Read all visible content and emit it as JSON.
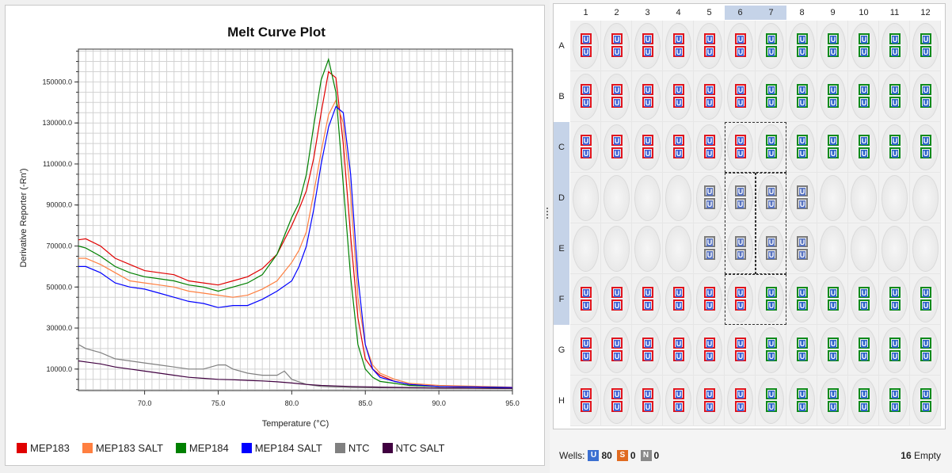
{
  "chart_data": {
    "type": "line",
    "title": "Melt Curve Plot",
    "xlabel": "Temperature (°C)",
    "ylabel": "Derivative Reporter (-Rn')",
    "xlim": [
      65.5,
      95.0
    ],
    "ylim": [
      -500,
      166000
    ],
    "xticks": [
      70.0,
      75.0,
      80.0,
      85.0,
      90.0,
      95.0
    ],
    "xtick_labels": [
      "70.0",
      "75.0",
      "80.0",
      "85.0",
      "90.0",
      "95.0"
    ],
    "yticks": [
      10000,
      30000,
      50000,
      70000,
      90000,
      110000,
      130000,
      150000
    ],
    "ytick_labels": [
      "10000.0",
      "30000.0",
      "50000.0",
      "70000.0",
      "90000.0",
      "110000.0",
      "130000.0",
      "150000.0"
    ],
    "grid": true,
    "legend_position": "bottom",
    "series": [
      {
        "name": "MEP183",
        "color": "#e00000",
        "x": [
          65.5,
          66,
          67,
          68,
          69,
          70,
          71,
          72,
          73,
          74,
          75,
          76,
          77,
          78,
          79,
          80,
          80.5,
          81,
          81.5,
          82,
          82.5,
          83,
          83.5,
          84,
          84.5,
          85,
          85.5,
          86,
          87,
          88,
          90,
          95
        ],
        "y": [
          73000,
          73500,
          70000,
          64000,
          61000,
          58000,
          57000,
          56000,
          53000,
          52000,
          51000,
          53000,
          55000,
          59000,
          66000,
          80000,
          88000,
          97000,
          113000,
          135000,
          155000,
          152000,
          120000,
          75000,
          35000,
          15000,
          10000,
          7000,
          4000,
          2500,
          1500,
          1000
        ]
      },
      {
        "name": "MEP183 SALT",
        "color": "#ff7f40",
        "x": [
          65.5,
          66,
          67,
          68,
          69,
          70,
          71,
          72,
          73,
          74,
          75,
          76,
          77,
          78,
          79,
          80,
          80.5,
          81,
          81.5,
          82,
          82.5,
          83,
          83.5,
          84,
          84.5,
          85,
          85.5,
          86,
          87,
          88,
          90,
          95
        ],
        "y": [
          64000,
          64000,
          61000,
          57000,
          53000,
          52000,
          51000,
          50000,
          48000,
          47000,
          46000,
          45000,
          46000,
          49000,
          53000,
          62000,
          68000,
          77000,
          96000,
          116000,
          134000,
          141000,
          130000,
          95000,
          45000,
          22000,
          12000,
          8000,
          5000,
          3000,
          2000,
          1200
        ]
      },
      {
        "name": "MEP184",
        "color": "#008000",
        "x": [
          65.5,
          66,
          67,
          68,
          69,
          70,
          71,
          72,
          73,
          74,
          75,
          76,
          77,
          78,
          79,
          80,
          80.5,
          81,
          81.5,
          82,
          82.5,
          83,
          83.5,
          84,
          84.5,
          85,
          85.5,
          86,
          87,
          88,
          90,
          95
        ],
        "y": [
          70000,
          69000,
          65000,
          60000,
          57000,
          55000,
          54000,
          53000,
          51000,
          50000,
          48000,
          50000,
          52000,
          56000,
          66000,
          84000,
          91000,
          105000,
          129000,
          151000,
          161000,
          145000,
          100000,
          55000,
          22000,
          10000,
          6000,
          4000,
          3000,
          2000,
          1500,
          1000
        ]
      },
      {
        "name": "MEP184 SALT",
        "color": "#0000ff",
        "x": [
          65.5,
          66,
          67,
          68,
          69,
          70,
          71,
          72,
          73,
          74,
          75,
          76,
          77,
          78,
          79,
          80,
          80.5,
          81,
          81.5,
          82,
          82.5,
          83,
          83.5,
          84,
          84.5,
          85,
          85.5,
          86,
          87,
          88,
          90,
          95
        ],
        "y": [
          60000,
          60000,
          57000,
          52000,
          50000,
          49000,
          47000,
          45000,
          43000,
          42000,
          40000,
          41000,
          41000,
          44000,
          48000,
          53000,
          60000,
          70000,
          88000,
          110000,
          128000,
          138000,
          135000,
          105000,
          55000,
          22000,
          10000,
          6000,
          4000,
          2500,
          1500,
          1000
        ]
      },
      {
        "name": "NTC",
        "color": "#808080",
        "x": [
          65.5,
          66,
          67,
          68,
          69,
          70,
          71,
          72,
          73,
          74,
          74.5,
          75,
          75.5,
          76,
          77,
          78,
          79,
          79.5,
          80,
          81,
          82,
          84,
          86,
          88,
          90,
          95
        ],
        "y": [
          22000,
          20000,
          18000,
          15000,
          14000,
          13000,
          12000,
          11000,
          10000,
          10000,
          11000,
          12000,
          12000,
          10000,
          8000,
          7000,
          7000,
          9000,
          5000,
          2500,
          1500,
          1000,
          800,
          700,
          600,
          500
        ]
      },
      {
        "name": "NTC SALT",
        "color": "#400040",
        "x": [
          65.5,
          66,
          67,
          68,
          69,
          70,
          71,
          72,
          73,
          74,
          75,
          76,
          77,
          78,
          79,
          80,
          81,
          82,
          84,
          86,
          88,
          90,
          95
        ],
        "y": [
          14000,
          13500,
          12500,
          11000,
          10000,
          9000,
          8000,
          7000,
          6000,
          5500,
          5000,
          4800,
          4500,
          4200,
          3800,
          3200,
          2500,
          2000,
          1500,
          1200,
          1000,
          800,
          600
        ]
      }
    ]
  },
  "plate": {
    "columns": [
      "1",
      "2",
      "3",
      "4",
      "5",
      "6",
      "7",
      "8",
      "9",
      "10",
      "11",
      "12"
    ],
    "rows": [
      "A",
      "B",
      "C",
      "D",
      "E",
      "F",
      "G",
      "H"
    ],
    "selected_columns": [
      "6",
      "7"
    ],
    "selected_rows": [
      "C",
      "D",
      "E",
      "F"
    ],
    "unknown_letter": "U",
    "row_wells": {
      "A": [
        "red",
        "red",
        "red",
        "red",
        "red",
        "red",
        "green",
        "green",
        "green",
        "green",
        "green",
        "green"
      ],
      "B": [
        "red",
        "red",
        "red",
        "red",
        "red",
        "red",
        "green",
        "green",
        "green",
        "green",
        "green",
        "green"
      ],
      "C": [
        "red",
        "red",
        "red",
        "red",
        "red",
        "red",
        "green",
        "green",
        "green",
        "green",
        "green",
        "green"
      ],
      "D": [
        "empty",
        "empty",
        "empty",
        "empty",
        "none",
        "none",
        "none",
        "none",
        "empty",
        "empty",
        "empty",
        "empty"
      ],
      "E": [
        "empty",
        "empty",
        "empty",
        "empty",
        "none",
        "none",
        "none",
        "none",
        "empty",
        "empty",
        "empty",
        "empty"
      ],
      "F": [
        "red",
        "red",
        "red",
        "red",
        "red",
        "red",
        "green",
        "green",
        "green",
        "green",
        "green",
        "green"
      ],
      "G": [
        "red",
        "red",
        "red",
        "red",
        "red",
        "red",
        "green",
        "green",
        "green",
        "green",
        "green",
        "green"
      ],
      "H": [
        "red",
        "red",
        "red",
        "red",
        "red",
        "red",
        "green",
        "green",
        "green",
        "green",
        "green",
        "green"
      ]
    },
    "tag_colors": {
      "red": "#e0141e",
      "green": "#0d8a1b",
      "none": "#7a7a7a"
    }
  },
  "footer": {
    "wells_label": "Wells:",
    "unknown_badge": "U",
    "unknown_count": "80",
    "standard_badge": "S",
    "standard_count": "0",
    "ntc_badge": "N",
    "ntc_count": "0",
    "empty_count": "16",
    "empty_label": "Empty"
  }
}
